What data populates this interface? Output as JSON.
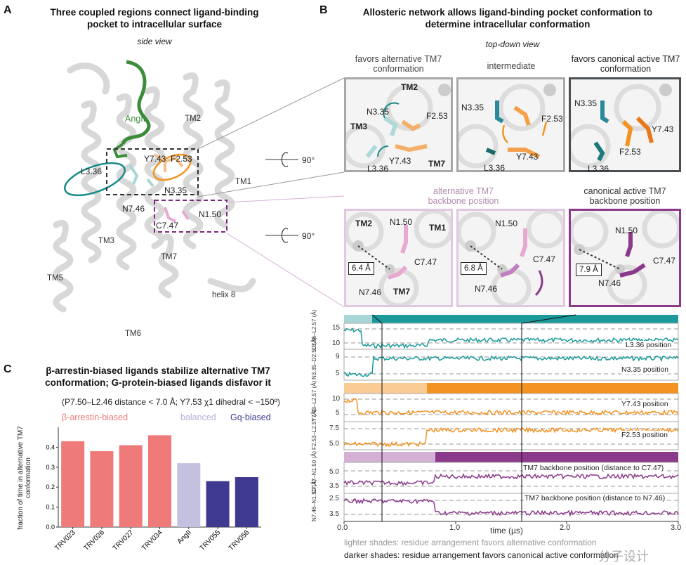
{
  "panel_a": {
    "letter": "A",
    "title_line1": "Three coupled regions connect ligand-binding",
    "title_line2": "pocket to intracellular surface",
    "subtitle": "side view",
    "labels": {
      "angii": "AngII",
      "tm2": "TM2",
      "tm1": "TM1",
      "tm3": "TM3",
      "tm5": "TM5",
      "tm6": "TM6",
      "tm7": "TM7",
      "helix8": "helix 8",
      "y743": "Y7.43",
      "f253": "F2.53",
      "l336": "L3.36",
      "n335": "N3.35",
      "n746": "N7.46",
      "n150": "N1.50",
      "c747": "C7.47"
    },
    "rotation": "90°",
    "rotation2": "90°"
  },
  "panel_b": {
    "letter": "B",
    "title_line1": "Allosteric network allows ligand-binding pocket conformation to",
    "title_line2": "determine intracellular conformation",
    "subtitle": "top-down view",
    "top_row": [
      {
        "head1": "favors alternative TM7",
        "head2": "conformation",
        "labels": [
          "TM2",
          "N3.35",
          "F2.53",
          "TM3",
          "Y7.43",
          "TM7",
          "L3.36"
        ]
      },
      {
        "head1": "intermediate",
        "head2": "",
        "labels": [
          "N3.35",
          "F2.53",
          "Y7.43",
          "L3.36"
        ]
      },
      {
        "head1": "favors canonical active TM7",
        "head2": "conformation",
        "labels": [
          "N3.35",
          "Y7.43",
          "F2.53",
          "L3.36"
        ]
      }
    ],
    "bottom_row": [
      {
        "head1": "alternative TM7",
        "head2": "backbone position",
        "labels": [
          "TM2",
          "N1.50",
          "TM1",
          "C7.47",
          "N7.46",
          "TM7"
        ],
        "distance": "6.4 Å"
      },
      {
        "head1": "",
        "head2": "",
        "labels": [
          "N1.50",
          "C7.47",
          "N7.46"
        ],
        "distance": "6.8 Å"
      },
      {
        "head1": "canonical active TM7",
        "head2": "backbone position",
        "labels": [
          "N1.50",
          "C7.47",
          "N7.46"
        ],
        "distance": "7.9 Å"
      }
    ],
    "traces": [
      {
        "ylabel": "L3.36–L2.57 (Å)",
        "label": "L3.36 position",
        "yticks": [
          "15",
          "10"
        ]
      },
      {
        "ylabel": "N3.35–D2.50 (Å)",
        "label": "N3.35 position",
        "yticks": [
          "9",
          "5"
        ]
      },
      {
        "ylabel": "Y7.43–L2.57 (Å)",
        "label": "Y7.43 position",
        "yticks": [
          "10",
          "5"
        ]
      },
      {
        "ylabel": "F2.53–L2.57 (Å)",
        "label": "F2.53 position",
        "yticks": [
          "7.5",
          "5.0"
        ]
      },
      {
        "ylabel": "C7.47–N1.50 (Å)",
        "label": "TM7 backbone position (distance to C7.47)",
        "yticks": [
          "5.0",
          "3.5"
        ]
      },
      {
        "ylabel": "N7.46–N1.50 (Å)",
        "label": "TM7 backbone position (distance to N7.46)",
        "yticks": [
          "2.5",
          "3.5"
        ]
      }
    ],
    "xaxis": {
      "label": "time (µs)",
      "ticks": [
        "0.0",
        "1.0",
        "2.0",
        "3.0"
      ]
    },
    "note_light": "lighter shades: residue arrangement favors alternative conformation",
    "note_dark": "darker shades: residue arrangement favors canonical active conformation",
    "watermark": "分子设计",
    "colors": {
      "teal_dark": "#1a9a9a",
      "teal_light": "#a8d6d6",
      "orange_dark": "#f39322",
      "orange_light": "#f9cc96",
      "purple_dark": "#8b3a8b",
      "purple_light": "#d4b0d4",
      "gray_box": "#9a9a9a",
      "dark_box": "#4a4f54"
    }
  },
  "panel_c": {
    "letter": "C",
    "title_line1": "β-arrestin-biased ligands stabilize alternative TM7",
    "title_line2": "conformation; G-protein-biased ligands disfavor it",
    "criteria": "(P7.50–L2.46 distance < 7.0 Å; Y7.53 χ1 dihedral < −150º)",
    "legend": {
      "arrestin": "β-arrestin-biased",
      "balanced": "balanced",
      "gq": "Gq-biased"
    }
  },
  "chart_data": {
    "type": "bar",
    "categories": [
      "TRV023",
      "TRV026",
      "TRV027",
      "TRV034",
      "AngII",
      "TRV055",
      "TRV056"
    ],
    "values": [
      0.43,
      0.38,
      0.41,
      0.46,
      0.32,
      0.23,
      0.25
    ],
    "groups": [
      "β-arrestin-biased",
      "β-arrestin-biased",
      "β-arrestin-biased",
      "β-arrestin-biased",
      "balanced",
      "Gq-biased",
      "Gq-biased"
    ],
    "colors": {
      "β-arrestin-biased": "#ef7a7a",
      "balanced": "#c3c0e0",
      "Gq-biased": "#3f3a8f"
    },
    "ylabel": "fraction of time in alternative TM7 conformation",
    "yticks": [
      0.0,
      0.1,
      0.2,
      0.3,
      0.4
    ],
    "ylim": [
      0,
      0.5
    ],
    "grid": false
  }
}
